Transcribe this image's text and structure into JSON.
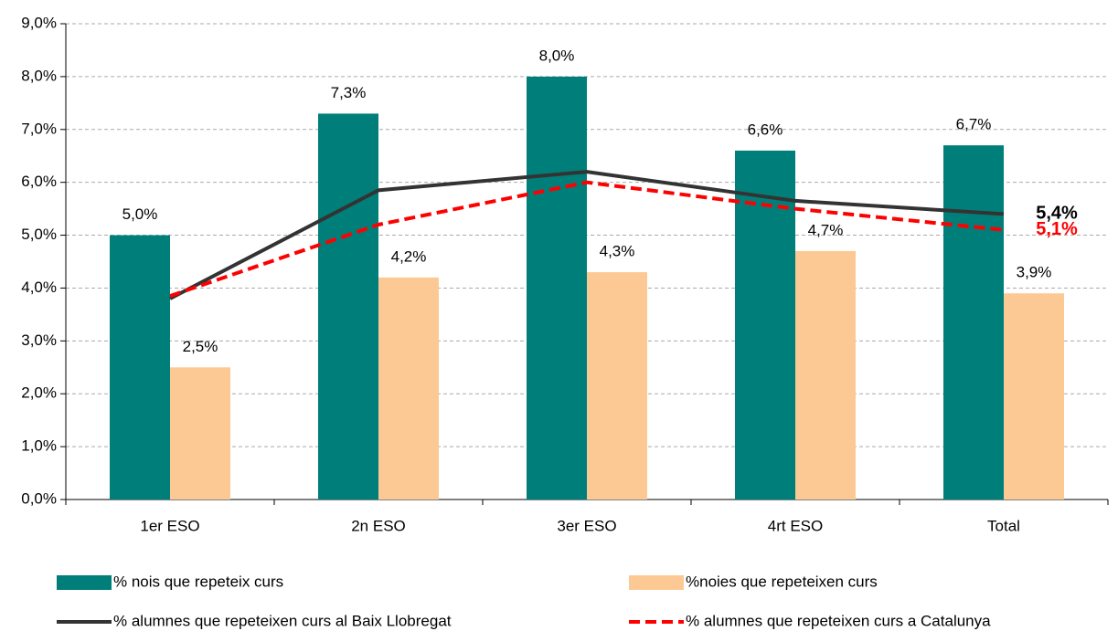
{
  "chart_data": {
    "type": "bar",
    "categories": [
      "1er ESO",
      "2n ESO",
      "3er ESO",
      "4rt ESO",
      "Total"
    ],
    "series": [
      {
        "name": "% nois que repeteix curs",
        "color": "#007f7a",
        "type": "bar",
        "values": [
          5.0,
          7.3,
          8.0,
          6.6,
          6.7
        ],
        "value_labels": [
          "5,0%",
          "7,3%",
          "8,0%",
          "6,6%",
          "6,7%"
        ]
      },
      {
        "name": "%noies que repeteixen curs",
        "color": "#fcc995",
        "type": "bar",
        "values": [
          2.5,
          4.2,
          4.3,
          4.7,
          3.9
        ],
        "value_labels": [
          "2,5%",
          "4,2%",
          "4,3%",
          "4,7%",
          "3,9%"
        ]
      },
      {
        "name": "% alumnes que repeteixen curs al Baix Llobregat",
        "color": "#333333",
        "type": "line",
        "dash": false,
        "values": [
          3.8,
          5.85,
          6.2,
          5.65,
          5.4
        ],
        "value_labels": [
          null,
          null,
          null,
          null,
          "5,4%"
        ]
      },
      {
        "name": "% alumnes que repeteixen curs a Catalunya",
        "color": "#ff0000",
        "type": "line",
        "dash": true,
        "values": [
          3.85,
          5.2,
          6.0,
          5.5,
          5.1
        ],
        "value_labels": [
          null,
          null,
          null,
          null,
          "5,1%"
        ]
      }
    ],
    "ylim": [
      0,
      9
    ],
    "yticks": [
      {
        "value": 0,
        "label": "0,0%"
      },
      {
        "value": 1,
        "label": "1,0%"
      },
      {
        "value": 2,
        "label": "2,0%"
      },
      {
        "value": 3,
        "label": "3,0%"
      },
      {
        "value": 4,
        "label": "4,0%"
      },
      {
        "value": 5,
        "label": "5,0%"
      },
      {
        "value": 6,
        "label": "6,0%"
      },
      {
        "value": 7,
        "label": "7,0%"
      },
      {
        "value": 8,
        "label": "8,0%"
      },
      {
        "value": 9,
        "label": "9,0%"
      }
    ],
    "grid": true
  }
}
